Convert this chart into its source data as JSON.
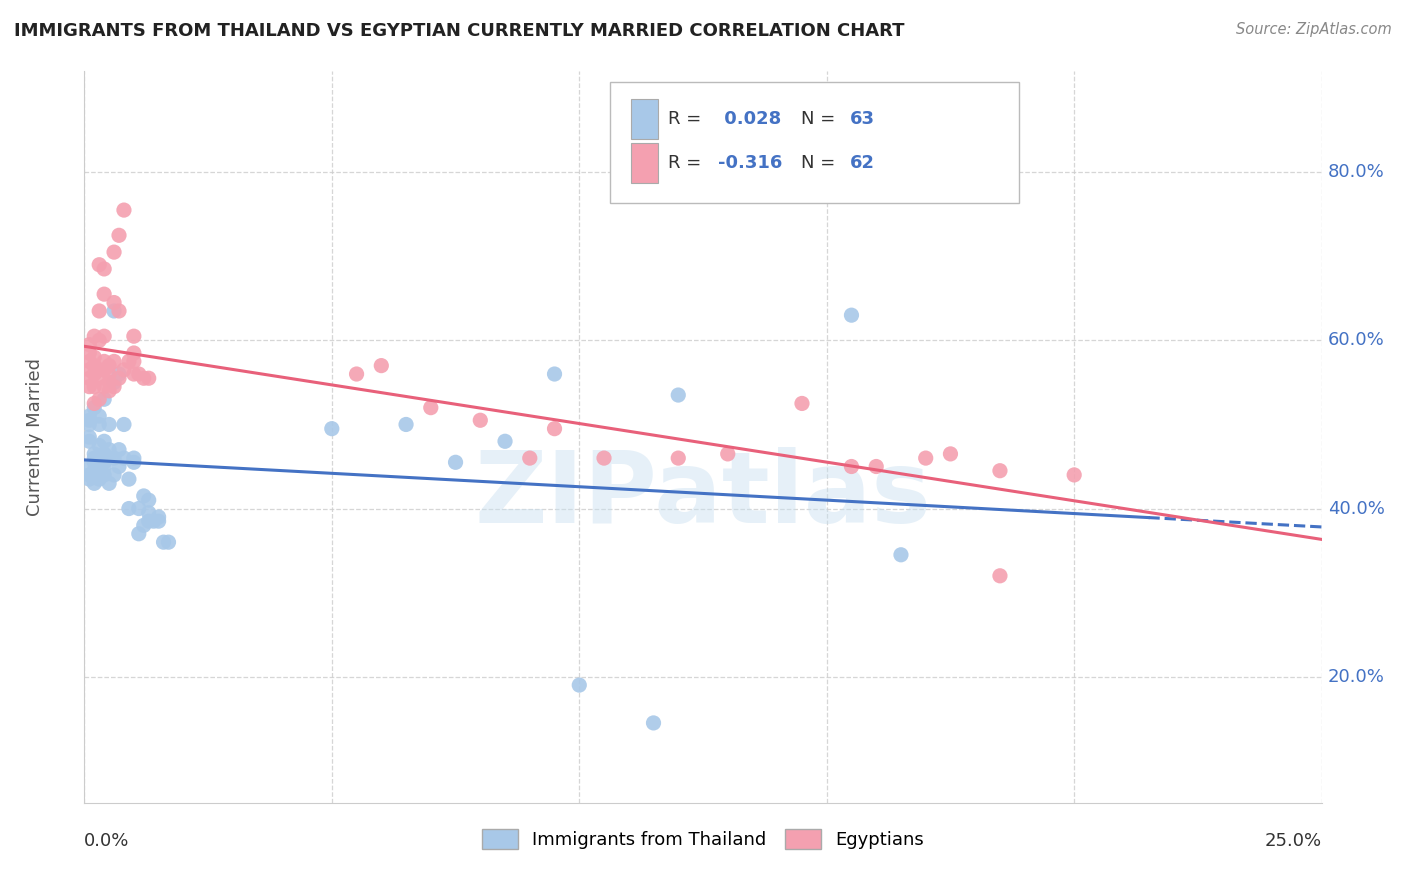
{
  "title": "IMMIGRANTS FROM THAILAND VS EGYPTIAN CURRENTLY MARRIED CORRELATION CHART",
  "source": "Source: ZipAtlas.com",
  "ylabel": "Currently Married",
  "ylabel_right_ticks": [
    "20.0%",
    "40.0%",
    "60.0%",
    "80.0%"
  ],
  "ylabel_right_vals": [
    0.2,
    0.4,
    0.6,
    0.8
  ],
  "xlim": [
    0.0,
    0.25
  ],
  "ylim": [
    0.05,
    0.92
  ],
  "legend_labels": [
    "Immigrants from Thailand",
    "Egyptians"
  ],
  "watermark": "ZIPatlas",
  "thailand_color": "#a8c8e8",
  "egyptian_color": "#f4a0b0",
  "thailand_trendline_color": "#4472c4",
  "egyptian_trendline_color": "#e8607a",
  "grid_color": "#cccccc",
  "background_color": "#ffffff",
  "thailand_points": [
    [
      0.001,
      0.435
    ],
    [
      0.001,
      0.44
    ],
    [
      0.001,
      0.45
    ],
    [
      0.001,
      0.48
    ],
    [
      0.001,
      0.485
    ],
    [
      0.001,
      0.5
    ],
    [
      0.001,
      0.505
    ],
    [
      0.001,
      0.51
    ],
    [
      0.002,
      0.43
    ],
    [
      0.002,
      0.445
    ],
    [
      0.002,
      0.455
    ],
    [
      0.002,
      0.46
    ],
    [
      0.002,
      0.465
    ],
    [
      0.002,
      0.52
    ],
    [
      0.003,
      0.435
    ],
    [
      0.003,
      0.44
    ],
    [
      0.003,
      0.455
    ],
    [
      0.003,
      0.46
    ],
    [
      0.003,
      0.475
    ],
    [
      0.003,
      0.5
    ],
    [
      0.003,
      0.51
    ],
    [
      0.004,
      0.44
    ],
    [
      0.004,
      0.45
    ],
    [
      0.004,
      0.455
    ],
    [
      0.004,
      0.465
    ],
    [
      0.004,
      0.48
    ],
    [
      0.004,
      0.53
    ],
    [
      0.005,
      0.43
    ],
    [
      0.005,
      0.46
    ],
    [
      0.005,
      0.47
    ],
    [
      0.005,
      0.5
    ],
    [
      0.006,
      0.44
    ],
    [
      0.006,
      0.46
    ],
    [
      0.006,
      0.55
    ],
    [
      0.006,
      0.635
    ],
    [
      0.007,
      0.45
    ],
    [
      0.007,
      0.47
    ],
    [
      0.007,
      0.56
    ],
    [
      0.008,
      0.46
    ],
    [
      0.008,
      0.5
    ],
    [
      0.009,
      0.4
    ],
    [
      0.009,
      0.435
    ],
    [
      0.01,
      0.455
    ],
    [
      0.01,
      0.46
    ],
    [
      0.011,
      0.37
    ],
    [
      0.011,
      0.4
    ],
    [
      0.012,
      0.38
    ],
    [
      0.012,
      0.415
    ],
    [
      0.013,
      0.385
    ],
    [
      0.013,
      0.395
    ],
    [
      0.013,
      0.41
    ],
    [
      0.014,
      0.385
    ],
    [
      0.015,
      0.385
    ],
    [
      0.015,
      0.39
    ],
    [
      0.016,
      0.36
    ],
    [
      0.017,
      0.36
    ],
    [
      0.05,
      0.495
    ],
    [
      0.065,
      0.5
    ],
    [
      0.075,
      0.455
    ],
    [
      0.085,
      0.48
    ],
    [
      0.095,
      0.56
    ],
    [
      0.12,
      0.535
    ],
    [
      0.155,
      0.63
    ],
    [
      0.165,
      0.345
    ],
    [
      0.115,
      0.145
    ],
    [
      0.1,
      0.19
    ]
  ],
  "egyptian_points": [
    [
      0.001,
      0.545
    ],
    [
      0.001,
      0.555
    ],
    [
      0.001,
      0.565
    ],
    [
      0.001,
      0.575
    ],
    [
      0.001,
      0.585
    ],
    [
      0.001,
      0.595
    ],
    [
      0.002,
      0.525
    ],
    [
      0.002,
      0.545
    ],
    [
      0.002,
      0.56
    ],
    [
      0.002,
      0.57
    ],
    [
      0.002,
      0.58
    ],
    [
      0.002,
      0.605
    ],
    [
      0.003,
      0.53
    ],
    [
      0.003,
      0.555
    ],
    [
      0.003,
      0.565
    ],
    [
      0.003,
      0.6
    ],
    [
      0.003,
      0.635
    ],
    [
      0.003,
      0.69
    ],
    [
      0.004,
      0.545
    ],
    [
      0.004,
      0.565
    ],
    [
      0.004,
      0.575
    ],
    [
      0.004,
      0.605
    ],
    [
      0.004,
      0.655
    ],
    [
      0.004,
      0.685
    ],
    [
      0.005,
      0.54
    ],
    [
      0.005,
      0.55
    ],
    [
      0.005,
      0.56
    ],
    [
      0.005,
      0.57
    ],
    [
      0.006,
      0.545
    ],
    [
      0.006,
      0.575
    ],
    [
      0.006,
      0.645
    ],
    [
      0.006,
      0.705
    ],
    [
      0.007,
      0.555
    ],
    [
      0.007,
      0.635
    ],
    [
      0.007,
      0.725
    ],
    [
      0.008,
      0.565
    ],
    [
      0.008,
      0.755
    ],
    [
      0.009,
      0.575
    ],
    [
      0.01,
      0.56
    ],
    [
      0.01,
      0.575
    ],
    [
      0.01,
      0.585
    ],
    [
      0.01,
      0.605
    ],
    [
      0.011,
      0.56
    ],
    [
      0.012,
      0.555
    ],
    [
      0.013,
      0.555
    ],
    [
      0.055,
      0.56
    ],
    [
      0.06,
      0.57
    ],
    [
      0.07,
      0.52
    ],
    [
      0.08,
      0.505
    ],
    [
      0.09,
      0.46
    ],
    [
      0.095,
      0.495
    ],
    [
      0.105,
      0.46
    ],
    [
      0.12,
      0.46
    ],
    [
      0.13,
      0.465
    ],
    [
      0.145,
      0.525
    ],
    [
      0.155,
      0.45
    ],
    [
      0.16,
      0.45
    ],
    [
      0.17,
      0.46
    ],
    [
      0.175,
      0.465
    ],
    [
      0.185,
      0.445
    ],
    [
      0.2,
      0.44
    ],
    [
      0.185,
      0.32
    ]
  ],
  "trendline_solid_end": 0.215,
  "trendline_dash_end": 0.25
}
